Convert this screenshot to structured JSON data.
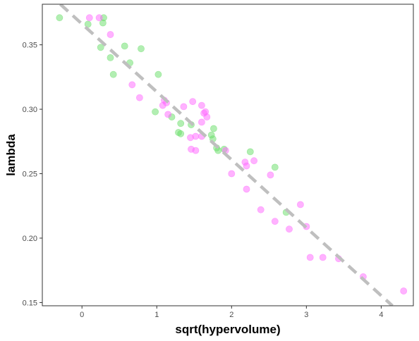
{
  "chart_data": {
    "type": "scatter",
    "title": "",
    "xlabel": "sqrt(hypervolume)",
    "ylabel": "lambda",
    "xlim": [
      -0.53,
      4.43
    ],
    "ylim": [
      0.1475,
      0.3815
    ],
    "x_ticks": [
      0,
      1,
      2,
      3,
      4
    ],
    "x_tick_labels": [
      "0",
      "1",
      "2",
      "3",
      "4"
    ],
    "y_ticks": [
      0.15,
      0.2,
      0.25,
      0.3,
      0.35
    ],
    "y_tick_labels": [
      "0.15",
      "0.20",
      "0.25",
      "0.30",
      "0.35"
    ],
    "grid": false,
    "legend": "none",
    "colors": {
      "green": "#66dd66",
      "magenta": "#ff66ff",
      "trend": "#bfbfbf",
      "panel_border": "#333333",
      "tick_text": "#4d4d4d"
    },
    "trend_line": {
      "x": [
        -0.29,
        4.15
      ],
      "y": [
        0.3815,
        0.1475
      ],
      "style": "dashed"
    },
    "series": [
      {
        "color_key": "green",
        "points": [
          [
            -0.3,
            0.371
          ],
          [
            0.08,
            0.366
          ],
          [
            0.29,
            0.371
          ],
          [
            0.28,
            0.367
          ],
          [
            0.25,
            0.348
          ],
          [
            0.57,
            0.349
          ],
          [
            0.79,
            0.347
          ],
          [
            0.38,
            0.34
          ],
          [
            0.64,
            0.336
          ],
          [
            0.42,
            0.327
          ],
          [
            1.02,
            0.327
          ],
          [
            0.98,
            0.298
          ],
          [
            1.2,
            0.294
          ],
          [
            1.29,
            0.282
          ],
          [
            1.32,
            0.281
          ],
          [
            1.32,
            0.289
          ],
          [
            1.46,
            0.288
          ],
          [
            1.76,
            0.285
          ],
          [
            1.73,
            0.28
          ],
          [
            1.75,
            0.277
          ],
          [
            1.82,
            0.268
          ],
          [
            1.8,
            0.27
          ],
          [
            1.9,
            0.269
          ],
          [
            2.25,
            0.267
          ],
          [
            2.58,
            0.255
          ],
          [
            2.73,
            0.22
          ]
        ]
      },
      {
        "color_key": "magenta",
        "points": [
          [
            0.1,
            0.371
          ],
          [
            0.23,
            0.371
          ],
          [
            0.38,
            0.358
          ],
          [
            0.67,
            0.319
          ],
          [
            0.77,
            0.309
          ],
          [
            1.08,
            0.303
          ],
          [
            1.1,
            0.307
          ],
          [
            1.13,
            0.305
          ],
          [
            1.15,
            0.296
          ],
          [
            1.36,
            0.302
          ],
          [
            1.48,
            0.306
          ],
          [
            1.6,
            0.303
          ],
          [
            1.63,
            0.297
          ],
          [
            1.65,
            0.298
          ],
          [
            1.67,
            0.294
          ],
          [
            1.6,
            0.29
          ],
          [
            1.45,
            0.278
          ],
          [
            1.52,
            0.279
          ],
          [
            1.6,
            0.279
          ],
          [
            1.46,
            0.269
          ],
          [
            1.52,
            0.268
          ],
          [
            1.92,
            0.268
          ],
          [
            2.0,
            0.25
          ],
          [
            2.18,
            0.259
          ],
          [
            2.2,
            0.256
          ],
          [
            2.3,
            0.26
          ],
          [
            2.2,
            0.238
          ],
          [
            2.39,
            0.222
          ],
          [
            2.52,
            0.249
          ],
          [
            2.58,
            0.213
          ],
          [
            2.77,
            0.207
          ],
          [
            2.92,
            0.226
          ],
          [
            3.0,
            0.209
          ],
          [
            3.05,
            0.185
          ],
          [
            3.22,
            0.185
          ],
          [
            3.43,
            0.184
          ],
          [
            3.76,
            0.17
          ],
          [
            4.3,
            0.159
          ]
        ]
      }
    ]
  }
}
